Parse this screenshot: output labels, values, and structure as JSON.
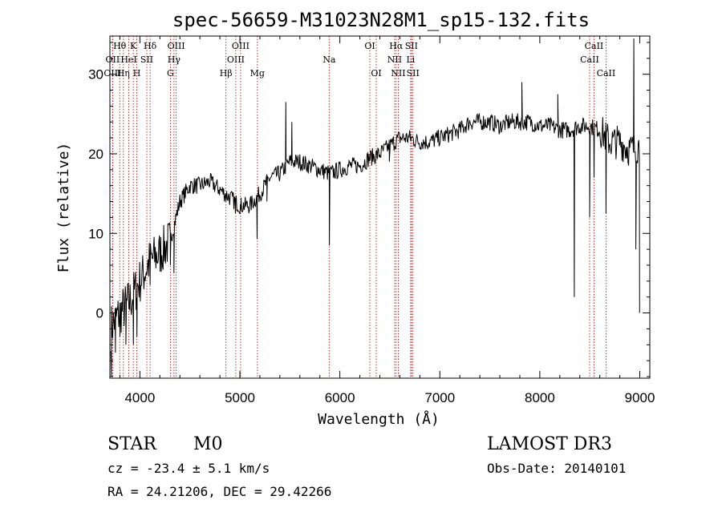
{
  "chart_data": {
    "type": "line",
    "title": "spec-56659-M31023N28M1_sp15-132.fits",
    "xlabel": "Wavelength (Å)",
    "ylabel": "Flux (relative)",
    "xlim": [
      3700,
      9100
    ],
    "ylim": [
      -8.2,
      34.8
    ],
    "xticks": [
      4000,
      5000,
      6000,
      7000,
      8000,
      9000
    ],
    "xtick_labels": [
      "4000",
      "5000",
      "6000",
      "7000",
      "8000",
      "9000"
    ],
    "yticks": [
      0,
      10,
      20,
      30
    ],
    "ytick_labels": [
      "0",
      "10",
      "20",
      "30"
    ],
    "series": [
      {
        "name": "spectrum",
        "continuum": [
          [
            3700,
            -2
          ],
          [
            3800,
            0
          ],
          [
            3900,
            1.5
          ],
          [
            4000,
            4
          ],
          [
            4100,
            6.5
          ],
          [
            4200,
            7.5
          ],
          [
            4300,
            9
          ],
          [
            4400,
            14
          ],
          [
            4500,
            16
          ],
          [
            4600,
            16
          ],
          [
            4700,
            16.5
          ],
          [
            4800,
            15.5
          ],
          [
            4900,
            14.5
          ],
          [
            5000,
            13.5
          ],
          [
            5100,
            13.5
          ],
          [
            5200,
            15
          ],
          [
            5300,
            17
          ],
          [
            5400,
            17.5
          ],
          [
            5500,
            19
          ],
          [
            5600,
            19
          ],
          [
            5700,
            18.5
          ],
          [
            5800,
            18
          ],
          [
            5900,
            17.5
          ],
          [
            6000,
            18
          ],
          [
            6100,
            18.5
          ],
          [
            6200,
            18.5
          ],
          [
            6300,
            19.5
          ],
          [
            6400,
            20
          ],
          [
            6500,
            21
          ],
          [
            6600,
            22
          ],
          [
            6700,
            22
          ],
          [
            6800,
            21.5
          ],
          [
            6900,
            21.5
          ],
          [
            7000,
            22
          ],
          [
            7100,
            22.5
          ],
          [
            7200,
            23
          ],
          [
            7300,
            24
          ],
          [
            7400,
            24
          ],
          [
            7500,
            24
          ],
          [
            7600,
            23.5
          ],
          [
            7700,
            24
          ],
          [
            7800,
            24
          ],
          [
            7900,
            24
          ],
          [
            8000,
            23.5
          ],
          [
            8100,
            23.5
          ],
          [
            8200,
            23
          ],
          [
            8300,
            23
          ],
          [
            8400,
            23.5
          ],
          [
            8500,
            23.5
          ],
          [
            8600,
            23
          ],
          [
            8700,
            21.5
          ],
          [
            8800,
            21.5
          ],
          [
            8900,
            20.5
          ],
          [
            9000,
            21
          ]
        ],
        "features": [
          [
            3715,
            -8
          ],
          [
            3755,
            -5
          ],
          [
            3800,
            -3
          ],
          [
            3860,
            -4
          ],
          [
            3935,
            -4
          ],
          [
            3970,
            -3
          ],
          [
            4102,
            3.5
          ],
          [
            4305,
            6
          ],
          [
            4340,
            5
          ],
          [
            4860,
            14
          ],
          [
            4955,
            12.5
          ],
          [
            5010,
            13
          ],
          [
            5172,
            9.3
          ],
          [
            5270,
            14
          ],
          [
            5460,
            26.5
          ],
          [
            5520,
            24
          ],
          [
            5895,
            8.5
          ],
          [
            6495,
            19
          ],
          [
            7820,
            29
          ],
          [
            8180,
            27.5
          ],
          [
            8345,
            2
          ],
          [
            8498,
            12
          ],
          [
            8542,
            17
          ],
          [
            8662,
            12.5
          ],
          [
            8940,
            34.5
          ],
          [
            8960,
            8
          ],
          [
            8998,
            0
          ]
        ],
        "noise_scale": 1.1,
        "noise_seed": 7
      }
    ],
    "lines": [
      {
        "label": "Hθ",
        "x": 3798,
        "row": 0
      },
      {
        "label": "OII",
        "x": 3727,
        "row": 1
      },
      {
        "label": "OIII",
        "x": 3727,
        "row": 2
      },
      {
        "label": "K",
        "x": 3934,
        "row": 0
      },
      {
        "label": "HeI",
        "x": 3889,
        "row": 1
      },
      {
        "label": "Hη",
        "x": 3835,
        "row": 2
      },
      {
        "label": "H",
        "x": 3969,
        "row": 2
      },
      {
        "label": "Hδ",
        "x": 4102,
        "row": 0
      },
      {
        "label": "SII",
        "x": 4069,
        "row": 1
      },
      {
        "label": "OIII",
        "x": 4363,
        "row": 0
      },
      {
        "label": "Hγ",
        "x": 4341,
        "row": 1
      },
      {
        "label": "G",
        "x": 4305,
        "row": 2
      },
      {
        "label": "OIII",
        "x": 5007,
        "row": 0
      },
      {
        "label": "OIII",
        "x": 4959,
        "row": 1
      },
      {
        "label": "Hβ",
        "x": 4861,
        "row": 2
      },
      {
        "label": "Mg",
        "x": 5175,
        "row": 2
      },
      {
        "label": "Na",
        "x": 5893,
        "row": 1
      },
      {
        "label": "OI",
        "x": 6300,
        "row": 0
      },
      {
        "label": "OI",
        "x": 6364,
        "row": 2
      },
      {
        "label": "Hα",
        "x": 6563,
        "row": 0
      },
      {
        "label": "SII",
        "x": 6716,
        "row": 0
      },
      {
        "label": "NII",
        "x": 6548,
        "row": 1
      },
      {
        "label": "Li",
        "x": 6708,
        "row": 1
      },
      {
        "label": "NII",
        "x": 6584,
        "row": 2
      },
      {
        "label": "SII",
        "x": 6731,
        "row": 2
      },
      {
        "label": "CaII",
        "x": 8542,
        "row": 0
      },
      {
        "label": "CaII",
        "x": 8498,
        "row": 1
      },
      {
        "label": "CaII",
        "x": 8662,
        "row": 2
      }
    ]
  },
  "info": {
    "class_label": "STAR",
    "subclass_label": "M0",
    "survey": "LAMOST DR3",
    "redshift": "cz = -23.4 ± 5.1 km/s",
    "obs_date": "Obs-Date: 20140101",
    "coords": "RA =  24.21206, DEC =  29.42266"
  }
}
